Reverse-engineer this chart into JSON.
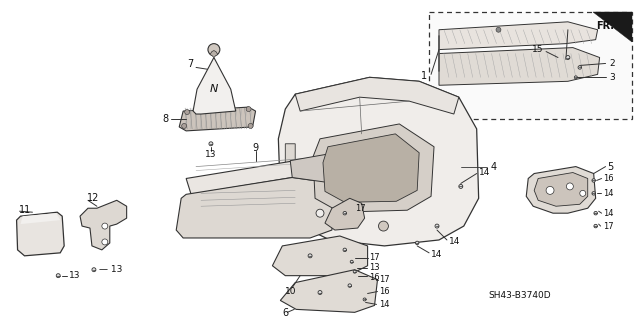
{
  "background_color": "#ffffff",
  "diagram_code": "SH43-B3740D",
  "figsize": [
    6.4,
    3.19
  ],
  "dpi": 100,
  "line_color": "#333333",
  "hatch_color": "#888888",
  "part_fill": "#f0eeec",
  "dark_fill": "#c8c0b8"
}
